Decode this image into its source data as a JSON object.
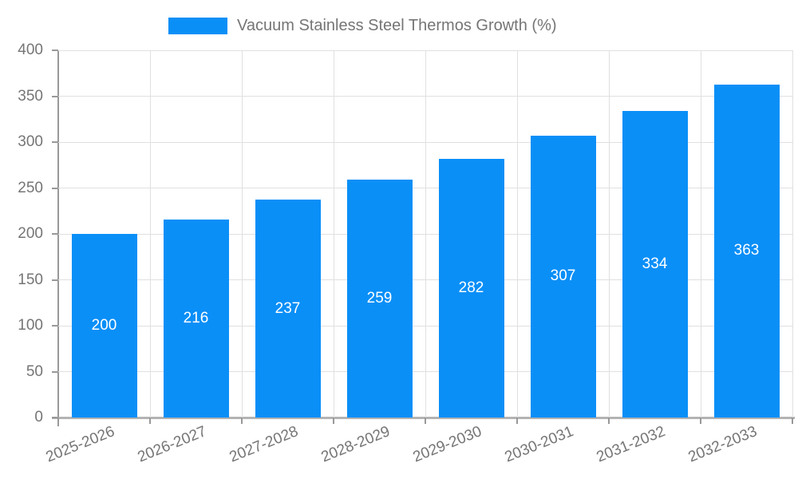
{
  "chart_data": {
    "type": "bar",
    "title": "Vacuum Stainless Steel Thermos Growth (%)",
    "series_name": "Vacuum Stainless Steel Thermos Growth (%)",
    "categories": [
      "2025-2026",
      "2026-2027",
      "2027-2028",
      "2028-2029",
      "2029-2030",
      "2030-2031",
      "2031-2032",
      "2032-2033"
    ],
    "values": [
      200,
      216,
      237,
      259,
      282,
      307,
      334,
      363
    ],
    "value_labels": [
      "200",
      "216",
      "237",
      "259",
      "282",
      "307",
      "334",
      "363"
    ],
    "xlabel": "",
    "ylabel": "",
    "ylim": [
      0,
      400
    ],
    "ytick_interval": 50,
    "yticks": [
      0,
      50,
      100,
      150,
      200,
      250,
      300,
      350,
      400
    ],
    "grid": true,
    "legend_position": "top",
    "bar_color": "#0a8ff7",
    "bar_label_color": "#ffffff",
    "axis_text_color": "#757575",
    "grid_color": "#e0e0e0",
    "axis_line_color": "#999999",
    "xtick_rotation_deg": -22
  }
}
